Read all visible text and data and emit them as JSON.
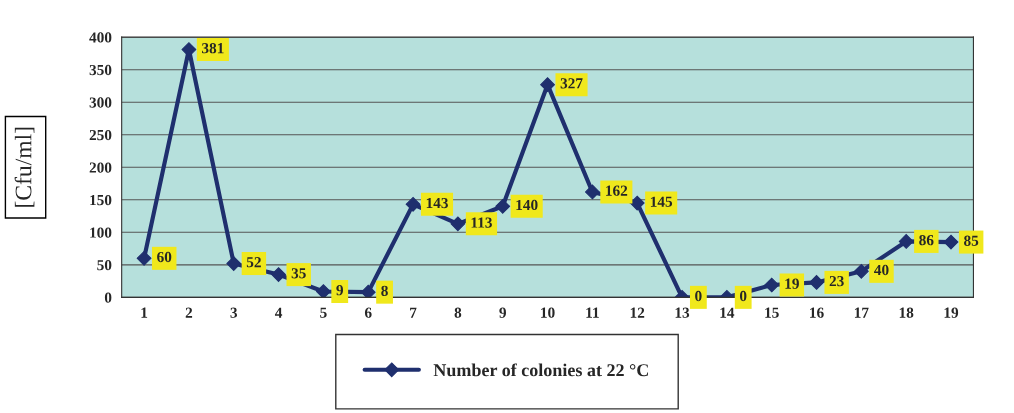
{
  "chart_data": {
    "type": "line",
    "ylabel": "[Cfu/ml]",
    "categories": [
      "1",
      "2",
      "3",
      "4",
      "5",
      "6",
      "7",
      "8",
      "9",
      "10",
      "11",
      "12",
      "13",
      "14",
      "15",
      "16",
      "17",
      "18",
      "19"
    ],
    "series": [
      {
        "name": "Number of colonies at 22 °C",
        "color": "#1f2f6e",
        "values": [
          60,
          381,
          52,
          35,
          9,
          8,
          143,
          113,
          140,
          327,
          162,
          145,
          0,
          0,
          19,
          23,
          40,
          86,
          85
        ]
      }
    ],
    "ylim": [
      0,
      400
    ],
    "yticks": [
      0,
      50,
      100,
      150,
      200,
      250,
      300,
      350,
      400
    ],
    "grid": "y",
    "legend": "bottom",
    "marker": "diamond",
    "line_style": "solid",
    "data_labels": true
  }
}
